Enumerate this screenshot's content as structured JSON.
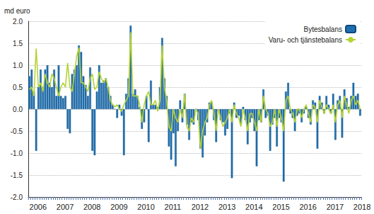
{
  "chart_data": {
    "type": "bar",
    "y_label": "md euro",
    "categories": [
      "2006",
      null,
      null,
      null,
      null,
      null,
      null,
      null,
      null,
      null,
      null,
      null,
      "2007",
      null,
      null,
      null,
      null,
      null,
      null,
      null,
      null,
      null,
      null,
      null,
      "2008",
      null,
      null,
      null,
      null,
      null,
      null,
      null,
      null,
      null,
      null,
      null,
      "2009",
      null,
      null,
      null,
      null,
      null,
      null,
      null,
      null,
      null,
      null,
      null,
      "2010",
      null,
      null,
      null,
      null,
      null,
      null,
      null,
      null,
      null,
      null,
      null,
      "2011",
      null,
      null,
      null,
      null,
      null,
      null,
      null,
      null,
      null,
      null,
      null,
      "2012",
      null,
      null,
      null,
      null,
      null,
      null,
      null,
      null,
      null,
      null,
      null,
      "2013",
      null,
      null,
      null,
      null,
      null,
      null,
      null,
      null,
      null,
      null,
      null,
      "2014",
      null,
      null,
      null,
      null,
      null,
      null,
      null,
      null,
      null,
      null,
      null,
      "2015",
      null,
      null,
      null,
      null,
      null,
      null,
      null,
      null,
      null,
      null,
      null,
      "2016",
      null,
      null,
      null,
      null,
      null,
      null,
      null,
      null,
      null,
      null,
      null,
      "2017",
      null,
      null,
      null,
      null,
      null,
      null,
      null,
      null,
      null,
      null,
      null,
      "2018",
      null,
      null,
      null
    ],
    "series": [
      {
        "name": "Bytesbalans",
        "type": "bar",
        "color": "#1f6fb0",
        "values": [
          0.75,
          0.9,
          0.4,
          -0.95,
          0.5,
          0.9,
          0.5,
          0.9,
          1.0,
          0.6,
          0.5,
          0.9,
          0.3,
          1.0,
          0.3,
          0.25,
          0.3,
          -0.45,
          -0.55,
          0.8,
          0.9,
          1.0,
          1.45,
          1.3,
          0.75,
          0.55,
          0.3,
          0.95,
          -0.95,
          -1.05,
          0.4,
          1.0,
          0.6,
          0.65,
          0.7,
          0.5,
          0.3,
          0.1,
          0.0,
          -0.2,
          0.1,
          -0.15,
          -1.05,
          0.35,
          0.7,
          1.9,
          0.35,
          0.45,
          0.3,
          0.05,
          -0.45,
          -0.3,
          0.3,
          -0.75,
          0.65,
          0.1,
          0.1,
          0.05,
          0.5,
          1.62,
          0.7,
          0.3,
          -0.85,
          -1.15,
          -0.55,
          -1.3,
          -0.5,
          0.2,
          -0.3,
          0.35,
          -0.35,
          -0.7,
          -0.3,
          -0.35,
          0.0,
          -0.25,
          -0.9,
          -1.1,
          -0.6,
          -0.3,
          0.15,
          0.15,
          -0.25,
          -0.75,
          -0.05,
          -0.25,
          -0.3,
          -0.6,
          -0.45,
          -0.1,
          -1.57,
          0.15,
          -0.2,
          -0.15,
          -0.35,
          0.05,
          -0.25,
          -0.8,
          -0.3,
          -0.2,
          -0.5,
          -1.3,
          -0.25,
          -0.3,
          0.45,
          -0.2,
          -0.15,
          -0.95,
          -0.35,
          -0.2,
          -0.85,
          -0.2,
          -0.3,
          -1.65,
          0.4,
          0.6,
          -0.1,
          -0.2,
          -0.5,
          -0.15,
          -0.1,
          -0.3,
          -0.1,
          0.05,
          -0.2,
          -0.35,
          0.2,
          0.15,
          -0.9,
          0.3,
          0.15,
          -0.1,
          0.3,
          0.1,
          -0.1,
          0.35,
          -0.7,
          0.2,
          0.3,
          -0.65,
          0.45,
          0.25,
          0.05,
          0.3,
          0.6,
          0.3,
          0.35,
          -0.15
        ]
      },
      {
        "name": "Varu- och tjänstebalans",
        "type": "line",
        "color": "#b5d334",
        "marker": "none",
        "values": [
          0.45,
          0.5,
          0.3,
          1.38,
          0.5,
          0.6,
          0.4,
          0.8,
          0.6,
          0.5,
          0.8,
          0.7,
          0.5,
          0.3,
          0.5,
          0.6,
          0.5,
          1.05,
          0.5,
          0.4,
          0.8,
          1.2,
          1.4,
          0.6,
          0.6,
          0.5,
          0.4,
          0.7,
          0.8,
          0.45,
          0.5,
          0.85,
          0.7,
          0.6,
          0.7,
          0.5,
          0.2,
          0.1,
          0.05,
          0.1,
          0.0,
          -0.05,
          0.1,
          0.2,
          0.3,
          1.75,
          0.3,
          0.3,
          0.3,
          0.1,
          -0.3,
          0.1,
          0.3,
          0.4,
          0.1,
          0.1,
          0.2,
          -0.05,
          0.2,
          1.45,
          0.5,
          0.2,
          -0.4,
          -0.5,
          0.0,
          -0.2,
          -0.3,
          0.0,
          -0.2,
          0.35,
          -0.4,
          -0.5,
          -0.2,
          -0.3,
          0.0,
          -0.1,
          -0.9,
          -0.5,
          -0.3,
          -0.2,
          0.1,
          0.2,
          -0.1,
          -0.5,
          0.0,
          -0.2,
          -0.4,
          -0.3,
          -0.2,
          0.0,
          -0.3,
          0.1,
          -0.1,
          -0.2,
          -0.4,
          0.0,
          -0.2,
          -0.5,
          -0.1,
          -0.1,
          -0.3,
          -0.5,
          0.0,
          -0.3,
          0.3,
          0.0,
          -0.1,
          -0.4,
          -0.3,
          0.0,
          -0.4,
          0.0,
          -0.2,
          -0.5,
          0.2,
          0.3,
          0.0,
          -0.1,
          -0.3,
          0.0,
          0.0,
          -0.2,
          0.0,
          0.1,
          -0.1,
          -0.3,
          0.1,
          0.05,
          -0.3,
          0.2,
          0.05,
          -0.1,
          0.1,
          0.0,
          -0.1,
          0.1,
          -0.3,
          0.1,
          0.2,
          -0.2,
          0.3,
          0.1,
          -0.1,
          0.2,
          0.3,
          0.1,
          0.2,
          0.0
        ]
      }
    ],
    "ylim": [
      -2,
      2
    ],
    "yticks": [
      {
        "value": -2,
        "label": "-2.0"
      },
      {
        "value": -1.5,
        "label": "-1.5"
      },
      {
        "value": -1,
        "label": "-1.0"
      },
      {
        "value": -0.5,
        "label": "-0.5"
      },
      {
        "value": 0,
        "label": "0.0"
      },
      {
        "value": 0.5,
        "label": "0.5"
      },
      {
        "value": 1,
        "label": "1.0"
      },
      {
        "value": 1.5,
        "label": "1.5"
      },
      {
        "value": 2,
        "label": "2.0"
      }
    ],
    "grid": true,
    "legend": "top-right"
  }
}
